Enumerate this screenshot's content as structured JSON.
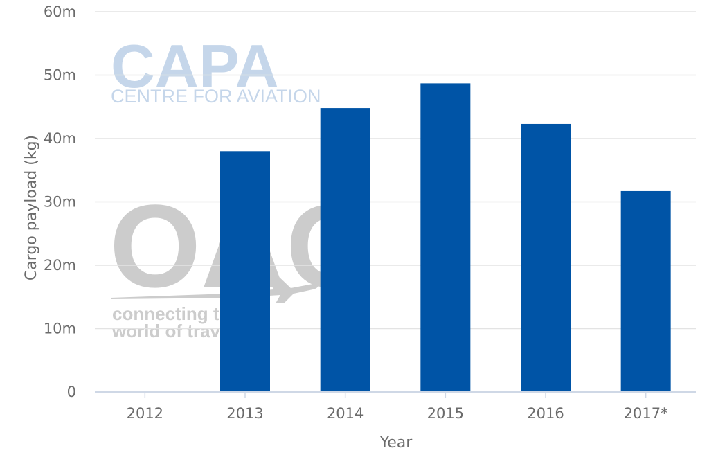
{
  "watermarks": {
    "capa_logo": "CAPA",
    "capa_tagline": "CENTRE FOR AVIATION",
    "oag_logo": "OAG",
    "oag_tagline_1": "connecting the",
    "oag_tagline_2": "world of travel"
  },
  "colors": {
    "bar": "#0054a6",
    "grid": "#e3e3e3",
    "axis": "#cfd8e6",
    "text": "#6b6b6b"
  },
  "chart_data": {
    "type": "bar",
    "xlabel": "Year",
    "ylabel": "Cargo payload (kg)",
    "categories": [
      "2012",
      "2013",
      "2014",
      "2015",
      "2016",
      "2017*"
    ],
    "values": [
      0,
      38000000,
      44800000,
      48700000,
      42300000,
      31700000
    ],
    "ylim": [
      0,
      60000000
    ],
    "yticks": [
      {
        "value": 0,
        "label": "0"
      },
      {
        "value": 10000000,
        "label": "10m"
      },
      {
        "value": 20000000,
        "label": "20m"
      },
      {
        "value": 30000000,
        "label": "30m"
      },
      {
        "value": 40000000,
        "label": "40m"
      },
      {
        "value": 50000000,
        "label": "50m"
      },
      {
        "value": 60000000,
        "label": "60m"
      }
    ],
    "grid": true,
    "legend": "none"
  }
}
